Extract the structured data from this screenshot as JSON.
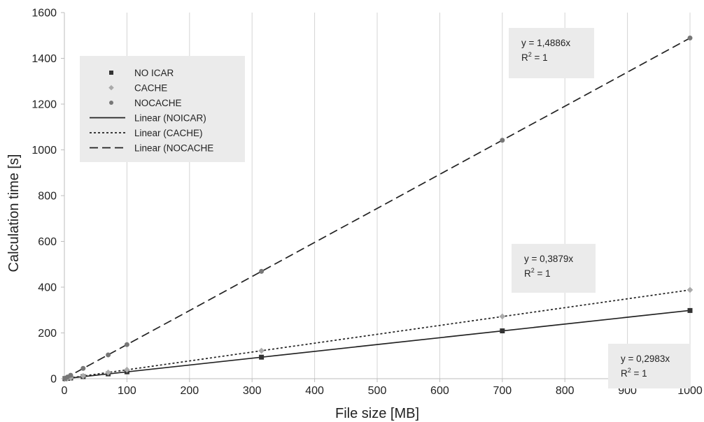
{
  "chart_data": {
    "type": "scatter",
    "xlabel": "File size [MB]",
    "ylabel": "Calculation time [s]",
    "xlim": [
      0,
      1000
    ],
    "ylim": [
      0,
      1600
    ],
    "xticks": [
      0,
      100,
      200,
      300,
      400,
      500,
      600,
      700,
      800,
      900,
      1000
    ],
    "yticks": [
      0,
      200,
      400,
      600,
      800,
      1000,
      1200,
      1400,
      1600
    ],
    "grid": "vertical",
    "legend_position": "top-left",
    "series": [
      {
        "name": "NO ICAR",
        "marker": "square",
        "color": "#333333",
        "x": [
          1,
          5,
          10,
          30,
          70,
          100,
          315,
          700,
          1000
        ],
        "y": [
          0.3,
          1.5,
          3,
          9,
          21,
          30,
          94,
          209,
          298
        ]
      },
      {
        "name": "CACHE",
        "marker": "diamond",
        "color": "#aaaaaa",
        "x": [
          1,
          5,
          10,
          30,
          70,
          100,
          315,
          700,
          1000
        ],
        "y": [
          0.4,
          2,
          4,
          12,
          27,
          39,
          122,
          272,
          388
        ]
      },
      {
        "name": "NOCACHE",
        "marker": "circle",
        "color": "#777777",
        "x": [
          1,
          5,
          10,
          30,
          70,
          100,
          315,
          700,
          1000
        ],
        "y": [
          1.5,
          7.4,
          15,
          45,
          104,
          149,
          469,
          1042,
          1489
        ]
      }
    ],
    "trendlines": [
      {
        "name": "Linear (NOICAR)",
        "style": "solid",
        "slope": 0.2983,
        "equation": "y = 0,2983x",
        "r2": "R",
        "r2_sup": "2",
        "r2_val": " = 1"
      },
      {
        "name": "Linear (CACHE)",
        "style": "dotted",
        "slope": 0.3879,
        "equation": "y = 0,3879x",
        "r2": "R",
        "r2_sup": "2",
        "r2_val": " = 1"
      },
      {
        "name": "Linear (NOCACHE",
        "style": "dashed",
        "slope": 1.4886,
        "equation": "y = 1,4886x",
        "r2": "R",
        "r2_sup": "2",
        "r2_val": " = 1"
      }
    ],
    "legend": [
      "NO ICAR",
      "CACHE",
      "NOCACHE",
      "Linear (NOICAR)",
      "Linear (CACHE)",
      "Linear (NOCACHE"
    ]
  }
}
